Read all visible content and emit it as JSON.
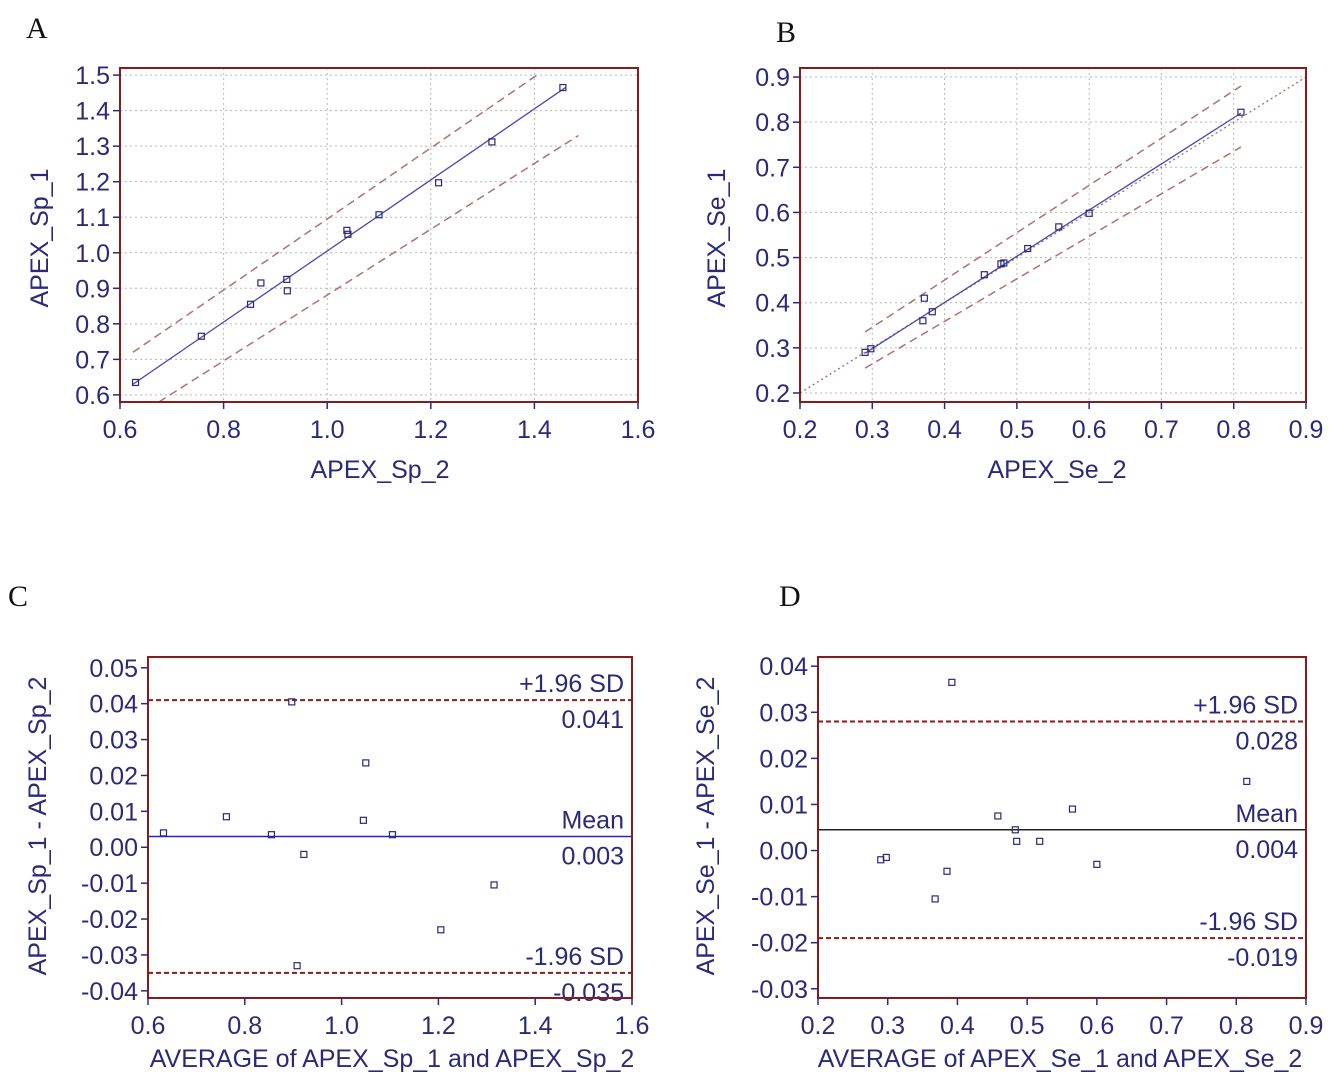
{
  "colors": {
    "frame": "#8b1a1a",
    "grid": "#b8b8b8",
    "text": "#2a2a78",
    "marker": "#2a2a78",
    "regression": "#4a4ab0",
    "prediction_band": "#b07070",
    "limits": "#8b1a1a",
    "mean_line_c": "#2222cc",
    "mean_line_d": "#222222",
    "identity": "#b07070"
  },
  "chart_data": [
    {
      "id": "A",
      "panel_letter": "A",
      "type": "scatter",
      "xlabel": "APEX_Sp_2",
      "ylabel": "APEX_Sp_1",
      "xlim": [
        0.6,
        1.6
      ],
      "ylim": [
        0.58,
        1.52
      ],
      "xticks": [
        "0.6",
        "0.8",
        "1.0",
        "1.2",
        "1.4",
        "1.6"
      ],
      "yticks": [
        "0.6",
        "0.7",
        "0.8",
        "0.9",
        "1.0",
        "1.1",
        "1.2",
        "1.3",
        "1.4",
        "1.5"
      ],
      "grid": true,
      "points": {
        "x": [
          0.63,
          0.757,
          0.852,
          0.872,
          0.922,
          0.923,
          1.038,
          1.04,
          1.1,
          1.215,
          1.318,
          1.455
        ],
        "y": [
          0.635,
          0.765,
          0.855,
          0.915,
          0.925,
          0.893,
          1.063,
          1.052,
          1.107,
          1.197,
          1.312,
          1.465
        ]
      },
      "regression_line": {
        "x": [
          0.625,
          1.46
        ],
        "y": [
          0.63,
          1.465
        ]
      },
      "upper_band": {
        "x": [
          0.625,
          1.405
        ],
        "y": [
          0.72,
          1.5
        ]
      },
      "lower_band": {
        "x": [
          0.675,
          1.485
        ],
        "y": [
          0.58,
          1.33
        ]
      }
    },
    {
      "id": "B",
      "panel_letter": "B",
      "type": "scatter",
      "xlabel": "APEX_Se_2",
      "ylabel": "APEX_Se_1",
      "xlim": [
        0.2,
        0.9
      ],
      "ylim": [
        0.18,
        0.92
      ],
      "xticks": [
        "0.2",
        "0.3",
        "0.4",
        "0.5",
        "0.6",
        "0.7",
        "0.8",
        "0.9"
      ],
      "yticks": [
        "0.2",
        "0.3",
        "0.4",
        "0.5",
        "0.6",
        "0.7",
        "0.8",
        "0.9"
      ],
      "grid": true,
      "points": {
        "x": [
          0.29,
          0.298,
          0.37,
          0.372,
          0.383,
          0.455,
          0.478,
          0.482,
          0.515,
          0.558,
          0.6,
          0.81
        ],
        "y": [
          0.29,
          0.298,
          0.36,
          0.41,
          0.38,
          0.462,
          0.486,
          0.488,
          0.52,
          0.568,
          0.598,
          0.822
        ]
      },
      "regression_line": {
        "x": [
          0.29,
          0.81
        ],
        "y": [
          0.288,
          0.82
        ]
      },
      "upper_band": {
        "x": [
          0.29,
          0.81
        ],
        "y": [
          0.335,
          0.88
        ]
      },
      "lower_band": {
        "x": [
          0.29,
          0.81
        ],
        "y": [
          0.255,
          0.745
        ]
      },
      "identity_line": {
        "x": [
          0.2,
          0.9
        ],
        "y": [
          0.2,
          0.9
        ]
      }
    },
    {
      "id": "C",
      "panel_letter": "C",
      "type": "scatter",
      "xlabel": "AVERAGE of APEX_Sp_1 and APEX_Sp_2",
      "ylabel": "APEX_Sp_1 - APEX_Sp_2",
      "xlim": [
        0.6,
        1.6
      ],
      "ylim": [
        -0.042,
        0.053
      ],
      "xticks": [
        "0.6",
        "0.8",
        "1.0",
        "1.2",
        "1.4",
        "1.6"
      ],
      "yticks": [
        "0.05",
        "0.04",
        "0.03",
        "0.02",
        "0.01",
        "0.00",
        "-0.01",
        "-0.02",
        "-0.03",
        "-0.04"
      ],
      "grid": false,
      "points": {
        "x": [
          0.632,
          0.762,
          0.855,
          0.897,
          0.908,
          0.922,
          1.045,
          1.05,
          1.105,
          1.205,
          1.315
        ],
        "y": [
          0.004,
          0.0085,
          0.0035,
          0.0405,
          -0.033,
          -0.002,
          0.0075,
          0.0235,
          0.0035,
          -0.023,
          -0.0105
        ]
      },
      "mean": {
        "value": 0.003,
        "label": "Mean",
        "value_text": "0.003"
      },
      "upper_limit": {
        "value": 0.041,
        "label": "+1.96 SD",
        "value_text": "0.041"
      },
      "lower_limit": {
        "value": -0.035,
        "label": "-1.96 SD",
        "value_text": "-0.035"
      }
    },
    {
      "id": "D",
      "panel_letter": "D",
      "type": "scatter",
      "xlabel": "AVERAGE of APEX_Se_1 and APEX_Se_2",
      "ylabel": "APEX_Se_1 - APEX_Se_2",
      "xlim": [
        0.2,
        0.9
      ],
      "ylim": [
        -0.032,
        0.042
      ],
      "xticks": [
        "0.2",
        "0.3",
        "0.4",
        "0.5",
        "0.6",
        "0.7",
        "0.8",
        "0.9"
      ],
      "yticks": [
        "0.04",
        "0.03",
        "0.02",
        "0.01",
        "0.00",
        "-0.01",
        "-0.02",
        "-0.03"
      ],
      "grid": false,
      "points": {
        "x": [
          0.29,
          0.298,
          0.368,
          0.385,
          0.392,
          0.458,
          0.483,
          0.485,
          0.518,
          0.565,
          0.6,
          0.815
        ],
        "y": [
          -0.002,
          -0.0015,
          -0.0105,
          -0.0045,
          0.0365,
          0.0075,
          0.0045,
          0.002,
          0.002,
          0.009,
          -0.003,
          0.015
        ]
      },
      "mean": {
        "value": 0.0045,
        "label": "Mean",
        "value_text": "0.004"
      },
      "upper_limit": {
        "value": 0.028,
        "label": "+1.96 SD",
        "value_text": "0.028"
      },
      "lower_limit": {
        "value": -0.019,
        "label": "-1.96 SD",
        "value_text": "-0.019"
      }
    }
  ]
}
